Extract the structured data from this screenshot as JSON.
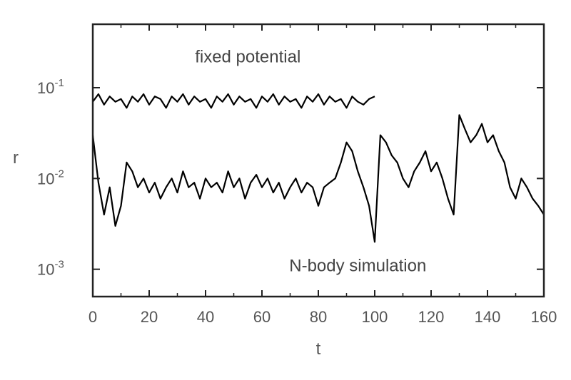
{
  "chart_data": {
    "type": "line",
    "xlabel": "t",
    "ylabel": "r",
    "xlim": [
      0,
      160
    ],
    "ylim": [
      0.0005,
      0.5
    ],
    "yscale": "log",
    "grid": false,
    "xticks": [
      0,
      20,
      40,
      60,
      80,
      100,
      120,
      140,
      160
    ],
    "yticks": [
      {
        "value": 0.1,
        "base": "10",
        "exp": "-1"
      },
      {
        "value": 0.01,
        "base": "10",
        "exp": "-2"
      },
      {
        "value": 0.001,
        "base": "10",
        "exp": "-3"
      }
    ],
    "annotations": [
      {
        "text": "fixed potential",
        "x": 55,
        "y": 0.19
      },
      {
        "text": "N-body simulation",
        "x": 94,
        "y": 0.00095
      }
    ],
    "series": [
      {
        "color": "#000000",
        "x": [
          0,
          2,
          4,
          6,
          8,
          10,
          12,
          14,
          16,
          18,
          20,
          22,
          24,
          26,
          28,
          30,
          32,
          34,
          36,
          38,
          40,
          42,
          44,
          46,
          48,
          50,
          52,
          54,
          56,
          58,
          60,
          62,
          64,
          66,
          68,
          70,
          72,
          74,
          76,
          78,
          80,
          82,
          84,
          86,
          88,
          90,
          92,
          94,
          96,
          98,
          100
        ],
        "y": [
          0.07,
          0.085,
          0.065,
          0.08,
          0.07,
          0.075,
          0.06,
          0.08,
          0.07,
          0.085,
          0.065,
          0.08,
          0.075,
          0.06,
          0.08,
          0.07,
          0.085,
          0.065,
          0.08,
          0.07,
          0.075,
          0.06,
          0.08,
          0.07,
          0.085,
          0.065,
          0.08,
          0.07,
          0.075,
          0.06,
          0.08,
          0.07,
          0.085,
          0.065,
          0.08,
          0.07,
          0.075,
          0.06,
          0.08,
          0.07,
          0.085,
          0.065,
          0.08,
          0.07,
          0.075,
          0.06,
          0.08,
          0.07,
          0.065,
          0.075,
          0.08
        ]
      },
      {
        "color": "#000000",
        "x": [
          0,
          2,
          4,
          6,
          8,
          10,
          12,
          14,
          16,
          18,
          20,
          22,
          24,
          26,
          28,
          30,
          32,
          34,
          36,
          38,
          40,
          42,
          44,
          46,
          48,
          50,
          52,
          54,
          56,
          58,
          60,
          62,
          64,
          66,
          68,
          70,
          72,
          74,
          76,
          78,
          80,
          82,
          84,
          86,
          88,
          90,
          92,
          94,
          96,
          98,
          100,
          102,
          104,
          106,
          108,
          110,
          112,
          114,
          116,
          118,
          120,
          122,
          124,
          126,
          128,
          130,
          132,
          134,
          136,
          138,
          140,
          142,
          144,
          146,
          148,
          150,
          152,
          154,
          156,
          158,
          160
        ],
        "y": [
          0.03,
          0.009,
          0.004,
          0.008,
          0.003,
          0.005,
          0.015,
          0.012,
          0.008,
          0.01,
          0.007,
          0.009,
          0.006,
          0.008,
          0.01,
          0.007,
          0.012,
          0.008,
          0.009,
          0.006,
          0.01,
          0.008,
          0.009,
          0.007,
          0.012,
          0.008,
          0.01,
          0.006,
          0.009,
          0.011,
          0.008,
          0.01,
          0.007,
          0.009,
          0.006,
          0.008,
          0.01,
          0.007,
          0.009,
          0.008,
          0.005,
          0.008,
          0.009,
          0.01,
          0.015,
          0.025,
          0.02,
          0.012,
          0.008,
          0.005,
          0.002,
          0.03,
          0.025,
          0.018,
          0.015,
          0.01,
          0.008,
          0.012,
          0.015,
          0.02,
          0.012,
          0.015,
          0.01,
          0.006,
          0.004,
          0.05,
          0.035,
          0.025,
          0.03,
          0.04,
          0.025,
          0.03,
          0.02,
          0.015,
          0.008,
          0.006,
          0.01,
          0.008,
          0.006,
          0.005,
          0.004
        ]
      }
    ]
  }
}
